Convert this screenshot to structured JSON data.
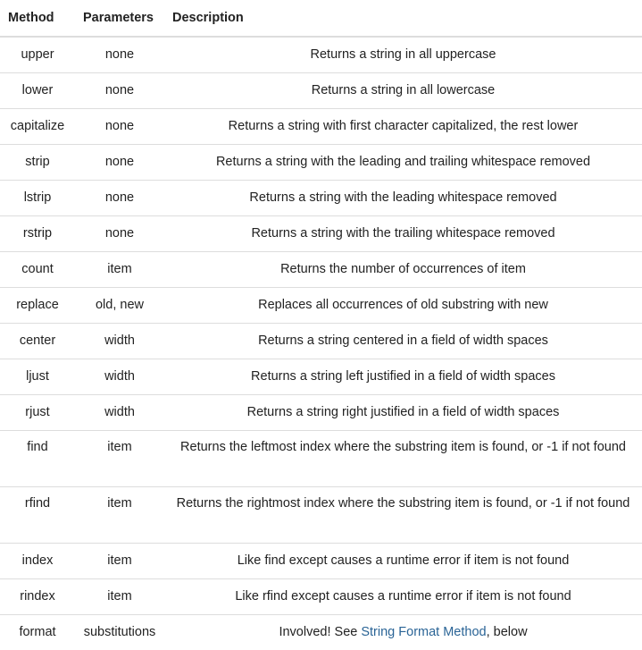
{
  "table": {
    "headers": {
      "method": "Method",
      "parameters": "Parameters",
      "description": "Description"
    },
    "rows": [
      {
        "method": "upper",
        "parameters": "none",
        "description": "Returns a string in all uppercase"
      },
      {
        "method": "lower",
        "parameters": "none",
        "description": "Returns a string in all lowercase"
      },
      {
        "method": "capitalize",
        "parameters": "none",
        "description": "Returns a string with first character capitalized, the rest lower"
      },
      {
        "method": "strip",
        "parameters": "none",
        "description": "Returns a string with the leading and trailing whitespace removed"
      },
      {
        "method": "lstrip",
        "parameters": "none",
        "description": "Returns a string with the leading whitespace removed"
      },
      {
        "method": "rstrip",
        "parameters": "none",
        "description": "Returns a string with the trailing whitespace removed"
      },
      {
        "method": "count",
        "parameters": "item",
        "description": "Returns the number of occurrences of item"
      },
      {
        "method": "replace",
        "parameters": "old, new",
        "description": "Replaces all occurrences of old substring with new"
      },
      {
        "method": "center",
        "parameters": "width",
        "description": "Returns a string centered in a field of width spaces"
      },
      {
        "method": "ljust",
        "parameters": "width",
        "description": "Returns a string left justified in a field of width spaces"
      },
      {
        "method": "rjust",
        "parameters": "width",
        "description": "Returns a string right justified in a field of width spaces"
      },
      {
        "method": "find",
        "parameters": "item",
        "description": "Returns the leftmost index where the substring item is found, or -1 if not found"
      },
      {
        "method": "rfind",
        "parameters": "item",
        "description": "Returns the rightmost index where the substring item is found, or -1 if not found"
      },
      {
        "method": "index",
        "parameters": "item",
        "description": "Like find except causes a runtime error if item is not found"
      },
      {
        "method": "rindex",
        "parameters": "item",
        "description": "Like rfind except causes a runtime error if item is not found"
      },
      {
        "method": "format",
        "parameters": "substitutions",
        "description_prefix": "Involved! See",
        "description_link": "String Format Method",
        "description_suffix": ", below"
      }
    ]
  }
}
